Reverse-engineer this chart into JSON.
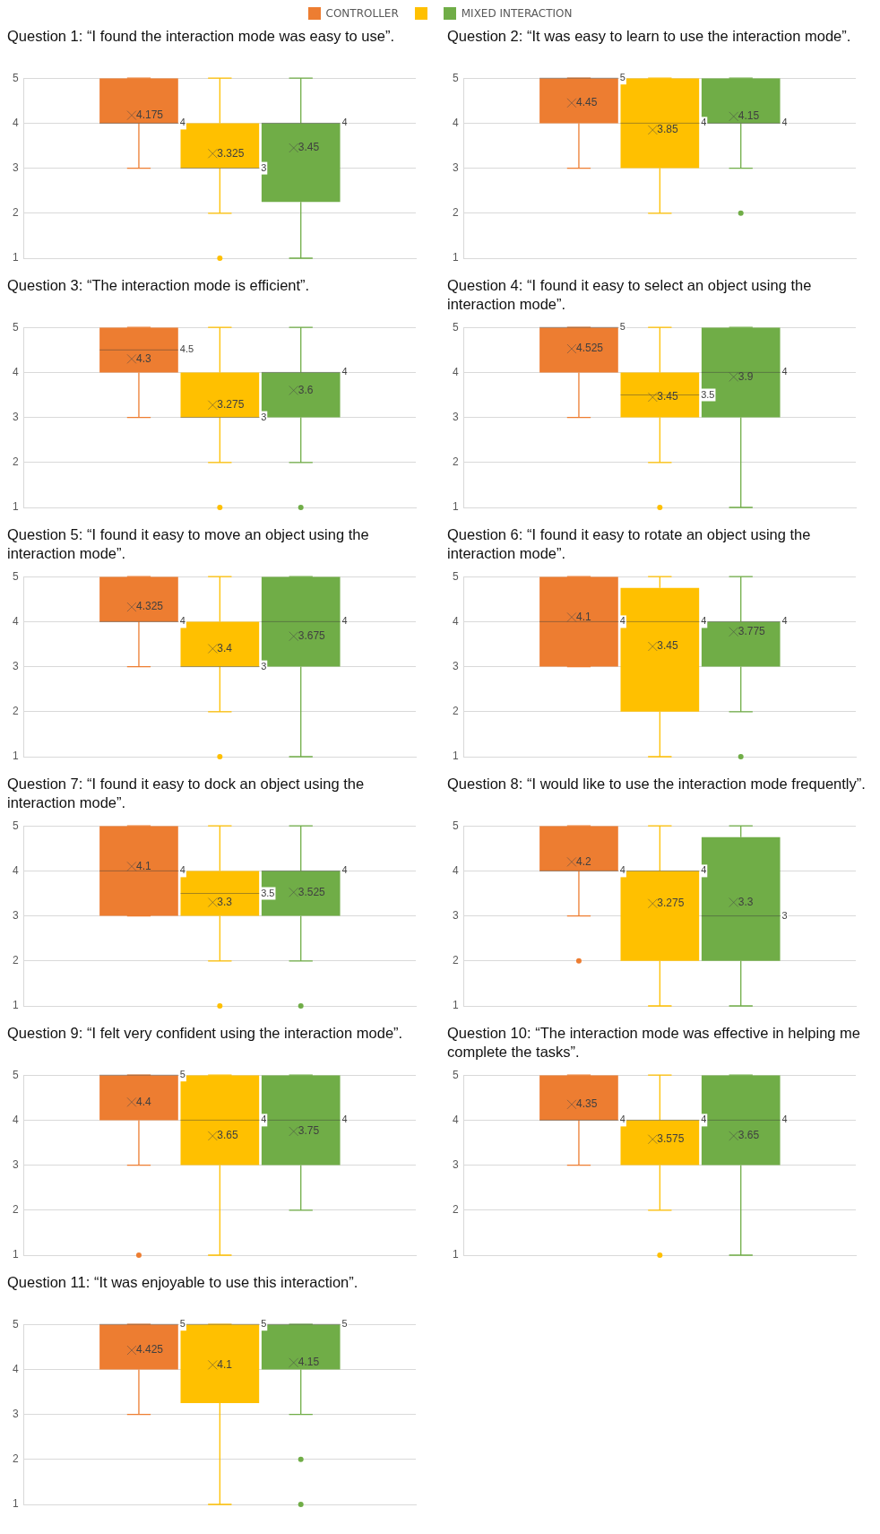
{
  "chart_data": [
    {
      "type": "box",
      "title": "Question 1: “I found the interaction mode was easy to use”.",
      "categories": [
        null
      ],
      "ylim": [
        1,
        5
      ],
      "yticks": [
        1,
        2,
        3,
        4,
        5
      ],
      "grid": "y",
      "tick_labels": "y",
      "legend": "top",
      "annotations": [
        "4.175",
        "4",
        "3.325",
        "3",
        "3.45",
        "4"
      ],
      "series": [
        {
          "name": "CONTROLLER",
          "color": "#ed7d31",
          "boxes": [
            {
              "low": 3,
              "q1": 4,
              "median": 4,
              "q3": 5,
              "high": 5,
              "mean": 4.175
            }
          ]
        },
        {
          "color": "#ffc000",
          "boxes": [
            {
              "low": 2,
              "q1": 3,
              "median": 3,
              "q3": 4,
              "high": 5,
              "mean": 3.325,
              "outliers": [
                1
              ]
            }
          ]
        },
        {
          "name": "MIXED INTERACTION",
          "color": "#70ad47",
          "boxes": [
            {
              "low": 1,
              "q1": 2.25,
              "median": 4,
              "q3": 4,
              "high": 5,
              "mean": 3.45
            }
          ]
        }
      ]
    },
    {
      "type": "box",
      "title": "Question 2: “It was easy to learn to use the interaction mode”.",
      "categories": [
        null
      ],
      "ylim": [
        1,
        5
      ],
      "yticks": [
        1,
        2,
        3,
        4,
        5
      ],
      "grid": "y",
      "tick_labels": "y",
      "annotations": [
        "4.45",
        "5",
        "3.85",
        "4",
        "4.15",
        "4"
      ],
      "series": [
        {
          "color": "#ed7d31",
          "boxes": [
            {
              "low": 3,
              "q1": 4,
              "median": 5,
              "q3": 5,
              "high": 5,
              "mean": 4.45
            }
          ]
        },
        {
          "color": "#ffc000",
          "boxes": [
            {
              "low": 2,
              "q1": 3,
              "median": 4,
              "q3": 5,
              "high": 5,
              "mean": 3.85
            }
          ]
        },
        {
          "color": "#70ad47",
          "boxes": [
            {
              "low": 3,
              "q1": 4,
              "median": 4,
              "q3": 5,
              "high": 5,
              "mean": 4.15,
              "outliers": [
                2
              ]
            }
          ]
        }
      ]
    },
    {
      "type": "box",
      "title": "Question 3: “The interaction mode is efficient”.",
      "categories": [
        null
      ],
      "ylim": [
        1,
        5
      ],
      "yticks": [
        1,
        2,
        3,
        4,
        5
      ],
      "grid": "y",
      "tick_labels": "y",
      "annotations": [
        "4.3",
        "4.5",
        "3.275",
        "3",
        "3.6",
        "4"
      ],
      "series": [
        {
          "color": "#ed7d31",
          "boxes": [
            {
              "low": 3,
              "q1": 4,
              "median": 4.5,
              "q3": 5,
              "high": 5,
              "mean": 4.3
            }
          ]
        },
        {
          "color": "#ffc000",
          "boxes": [
            {
              "low": 2,
              "q1": 3,
              "median": 3,
              "q3": 4,
              "high": 5,
              "mean": 3.275,
              "outliers": [
                1
              ]
            }
          ]
        },
        {
          "color": "#70ad47",
          "boxes": [
            {
              "low": 2,
              "q1": 3,
              "median": 4,
              "q3": 4,
              "high": 5,
              "mean": 3.6,
              "outliers": [
                1
              ]
            }
          ]
        }
      ]
    },
    {
      "type": "box",
      "title": "Question 4: “I found it easy to select an object using the interaction mode”.",
      "categories": [
        null
      ],
      "ylim": [
        1,
        5
      ],
      "yticks": [
        1,
        2,
        3,
        4,
        5
      ],
      "grid": "y",
      "tick_labels": "y",
      "annotations": [
        "4.525",
        "5",
        "3.45",
        "3.5",
        "3.9",
        "4"
      ],
      "series": [
        {
          "color": "#ed7d31",
          "boxes": [
            {
              "low": 3,
              "q1": 4,
              "median": 5,
              "q3": 5,
              "high": 5,
              "mean": 4.525
            }
          ]
        },
        {
          "color": "#ffc000",
          "boxes": [
            {
              "low": 2,
              "q1": 3,
              "median": 3.5,
              "q3": 4,
              "high": 5,
              "mean": 3.45,
              "outliers": [
                1
              ]
            }
          ]
        },
        {
          "color": "#70ad47",
          "boxes": [
            {
              "low": 1,
              "q1": 3,
              "median": 4,
              "q3": 5,
              "high": 5,
              "mean": 3.9
            }
          ]
        }
      ]
    },
    {
      "type": "box",
      "title": "Question 5: “I found it easy to move an object using the interaction mode”.",
      "categories": [
        null
      ],
      "ylim": [
        1,
        5
      ],
      "yticks": [
        1,
        2,
        3,
        4,
        5
      ],
      "grid": "y",
      "tick_labels": "y",
      "annotations": [
        "4.325",
        "4",
        "3.4",
        "3",
        "3.675",
        "4"
      ],
      "series": [
        {
          "color": "#ed7d31",
          "boxes": [
            {
              "low": 3,
              "q1": 4,
              "median": 4,
              "q3": 5,
              "high": 5,
              "mean": 4.325
            }
          ]
        },
        {
          "color": "#ffc000",
          "boxes": [
            {
              "low": 2,
              "q1": 3,
              "median": 3,
              "q3": 4,
              "high": 5,
              "mean": 3.4,
              "outliers": [
                1
              ]
            }
          ]
        },
        {
          "color": "#70ad47",
          "boxes": [
            {
              "low": 1,
              "q1": 3,
              "median": 4,
              "q3": 5,
              "high": 5,
              "mean": 3.675
            }
          ]
        }
      ]
    },
    {
      "type": "box",
      "title": "Question 6: “I found it easy to rotate an object using the interaction mode”.",
      "categories": [
        null
      ],
      "ylim": [
        1,
        5
      ],
      "yticks": [
        1,
        2,
        3,
        4,
        5
      ],
      "grid": "y",
      "tick_labels": "y",
      "annotations": [
        "4.1",
        "4",
        "3.45",
        "4",
        "3.775",
        "4"
      ],
      "series": [
        {
          "color": "#ed7d31",
          "boxes": [
            {
              "low": 3,
              "q1": 3,
              "median": 4,
              "q3": 5,
              "high": 5,
              "mean": 4.1
            }
          ]
        },
        {
          "color": "#ffc000",
          "boxes": [
            {
              "low": 1,
              "q1": 2,
              "median": 4,
              "q3": 4.75,
              "high": 5,
              "mean": 3.45
            }
          ]
        },
        {
          "color": "#70ad47",
          "boxes": [
            {
              "low": 2,
              "q1": 3,
              "median": 4,
              "q3": 4,
              "high": 5,
              "mean": 3.775,
              "outliers": [
                1
              ]
            }
          ]
        }
      ]
    },
    {
      "type": "box",
      "title": "Question 7: “I found it easy to dock an object using the interaction mode”.",
      "categories": [
        null
      ],
      "ylim": [
        1,
        5
      ],
      "yticks": [
        1,
        2,
        3,
        4,
        5
      ],
      "grid": "y",
      "tick_labels": "y",
      "annotations": [
        "4.1",
        "4",
        "3.3",
        "3.5",
        "3.525",
        "4"
      ],
      "series": [
        {
          "color": "#ed7d31",
          "boxes": [
            {
              "low": 3,
              "q1": 3,
              "median": 4,
              "q3": 5,
              "high": 5,
              "mean": 4.1
            }
          ]
        },
        {
          "color": "#ffc000",
          "boxes": [
            {
              "low": 2,
              "q1": 3,
              "median": 3.5,
              "q3": 4,
              "high": 5,
              "mean": 3.3,
              "outliers": [
                1
              ]
            }
          ]
        },
        {
          "color": "#70ad47",
          "boxes": [
            {
              "low": 2,
              "q1": 3,
              "median": 4,
              "q3": 4,
              "high": 5,
              "mean": 3.525,
              "outliers": [
                1
              ]
            }
          ]
        }
      ]
    },
    {
      "type": "box",
      "title": "Question 8: “I would like to use the interaction mode frequently”.",
      "categories": [
        null
      ],
      "ylim": [
        1,
        5
      ],
      "yticks": [
        1,
        2,
        3,
        4,
        5
      ],
      "grid": "y",
      "tick_labels": "y",
      "annotations": [
        "4.2",
        "4",
        "3.275",
        "4",
        "3.3",
        "3"
      ],
      "series": [
        {
          "color": "#ed7d31",
          "boxes": [
            {
              "low": 3,
              "q1": 4,
              "median": 4,
              "q3": 5,
              "high": 5,
              "mean": 4.2,
              "outliers": [
                2
              ]
            }
          ]
        },
        {
          "color": "#ffc000",
          "boxes": [
            {
              "low": 1,
              "q1": 2,
              "median": 4,
              "q3": 4,
              "high": 5,
              "mean": 3.275
            }
          ]
        },
        {
          "color": "#70ad47",
          "boxes": [
            {
              "low": 1,
              "q1": 2,
              "median": 3,
              "q3": 4.75,
              "high": 5,
              "mean": 3.3
            }
          ]
        }
      ]
    },
    {
      "type": "box",
      "title": "Question 9: “I felt very confident using the interaction mode”.",
      "categories": [
        null
      ],
      "ylim": [
        1,
        5
      ],
      "yticks": [
        1,
        2,
        3,
        4,
        5
      ],
      "grid": "y",
      "tick_labels": "y",
      "annotations": [
        "4.4",
        "5",
        "3.65",
        "4",
        "3.75",
        "4"
      ],
      "series": [
        {
          "color": "#ed7d31",
          "boxes": [
            {
              "low": 3,
              "q1": 4,
              "median": 5,
              "q3": 5,
              "high": 5,
              "mean": 4.4,
              "outliers": [
                1
              ]
            }
          ]
        },
        {
          "color": "#ffc000",
          "boxes": [
            {
              "low": 1,
              "q1": 3,
              "median": 4,
              "q3": 5,
              "high": 5,
              "mean": 3.65
            }
          ]
        },
        {
          "color": "#70ad47",
          "boxes": [
            {
              "low": 2,
              "q1": 3,
              "median": 4,
              "q3": 5,
              "high": 5,
              "mean": 3.75
            }
          ]
        }
      ]
    },
    {
      "type": "box",
      "title": "Question 10: “The interaction mode was effective in helping me complete the tasks”.",
      "categories": [
        null
      ],
      "ylim": [
        1,
        5
      ],
      "yticks": [
        1,
        2,
        3,
        4,
        5
      ],
      "grid": "y",
      "tick_labels": "y",
      "annotations": [
        "4.35",
        "4",
        "3.575",
        "4",
        "3.65",
        "4"
      ],
      "series": [
        {
          "color": "#ed7d31",
          "boxes": [
            {
              "low": 3,
              "q1": 4,
              "median": 4,
              "q3": 5,
              "high": 5,
              "mean": 4.35
            }
          ]
        },
        {
          "color": "#ffc000",
          "boxes": [
            {
              "low": 2,
              "q1": 3,
              "median": 4,
              "q3": 4,
              "high": 5,
              "mean": 3.575,
              "outliers": [
                1
              ]
            }
          ]
        },
        {
          "color": "#70ad47",
          "boxes": [
            {
              "low": 1,
              "q1": 3,
              "median": 4,
              "q3": 5,
              "high": 5,
              "mean": 3.65
            }
          ]
        }
      ]
    },
    {
      "type": "box",
      "title": "Question 11: “It was enjoyable to use this interaction”.",
      "categories": [
        null
      ],
      "ylim": [
        1,
        5
      ],
      "yticks": [
        1,
        2,
        3,
        4,
        5
      ],
      "grid": "y",
      "tick_labels": "y",
      "annotations": [
        "4.425",
        "5",
        "4.1",
        "5",
        "4.15",
        "5"
      ],
      "series": [
        {
          "color": "#ed7d31",
          "boxes": [
            {
              "low": 3,
              "q1": 4,
              "median": 5,
              "q3": 5,
              "high": 5,
              "mean": 4.425
            }
          ]
        },
        {
          "color": "#ffc000",
          "boxes": [
            {
              "low": 1,
              "q1": 3.25,
              "median": 5,
              "q3": 5,
              "high": 5,
              "mean": 4.1
            }
          ]
        },
        {
          "color": "#70ad47",
          "boxes": [
            {
              "low": 3,
              "q1": 4,
              "median": 5,
              "q3": 5,
              "high": 5,
              "mean": 4.15,
              "outliers": [
                2,
                1
              ]
            }
          ]
        }
      ]
    }
  ]
}
